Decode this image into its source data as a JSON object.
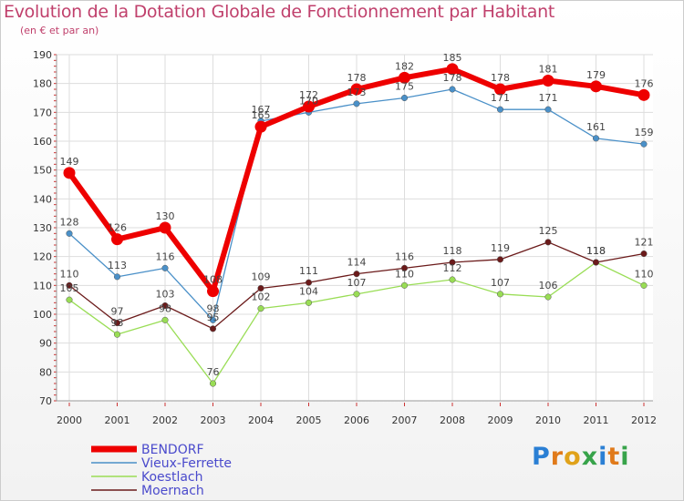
{
  "title": "Evolution de la Dotation Globale de Fonctionnement par Habitant",
  "subtitle": "(en € et par an)",
  "logo": {
    "letters": [
      "P",
      "r",
      "o",
      "x",
      "i",
      "t",
      "i"
    ],
    "colors": [
      "#2a7fd4",
      "#e07a1a",
      "#e0a21a",
      "#37a34a",
      "#2a7fd4",
      "#e07a1a",
      "#37a34a"
    ]
  },
  "chart_data": {
    "type": "line",
    "categories": [
      "2000",
      "2001",
      "2002",
      "2003",
      "2004",
      "2005",
      "2006",
      "2007",
      "2008",
      "2009",
      "2010",
      "2011",
      "2012"
    ],
    "ylim": [
      70,
      190
    ],
    "yticks": [
      70,
      80,
      90,
      100,
      110,
      120,
      130,
      140,
      150,
      160,
      170,
      180,
      190
    ],
    "grid": true,
    "legend_position": "bottom-left",
    "series": [
      {
        "name": "Vieux-Ferrette",
        "color": "#4a90c8",
        "values": [
          128,
          113,
          116,
          98,
          167,
          170,
          173,
          175,
          178,
          171,
          171,
          161,
          159
        ],
        "labels": [
          "128",
          "113",
          "116",
          "98",
          "167",
          "170",
          "173",
          "175",
          "178",
          "171",
          "171",
          "161",
          "159"
        ]
      },
      {
        "name": "Koestlach",
        "color": "#99dd55",
        "values": [
          105,
          93,
          98,
          76,
          102,
          104,
          107,
          110,
          112,
          107,
          106,
          118,
          110
        ],
        "labels": [
          "105",
          "93",
          "98",
          "76",
          "102",
          "104",
          "107",
          "110",
          "112",
          "107",
          "106",
          "118",
          "110"
        ]
      },
      {
        "name": "Moernach",
        "color": "#6b1a1a",
        "values": [
          110,
          97,
          103,
          95,
          109,
          111,
          114,
          116,
          118,
          119,
          125,
          118,
          121
        ],
        "labels": [
          "110",
          "97",
          "103",
          "95",
          "109",
          "111",
          "114",
          "116",
          "118",
          "119",
          "125",
          "118",
          "121"
        ]
      },
      {
        "name": "BENDORF",
        "color": "#ee0000",
        "values": [
          149,
          126,
          130,
          108,
          165,
          172,
          178,
          182,
          185,
          178,
          181,
          179,
          176
        ],
        "labels": [
          "149",
          "126",
          "130",
          "108",
          "165",
          "172",
          "178",
          "182",
          "185",
          "178",
          "181",
          "179",
          "176"
        ]
      }
    ],
    "legend": [
      "BENDORF",
      "Vieux-Ferrette",
      "Koestlach",
      "Moernach"
    ]
  }
}
